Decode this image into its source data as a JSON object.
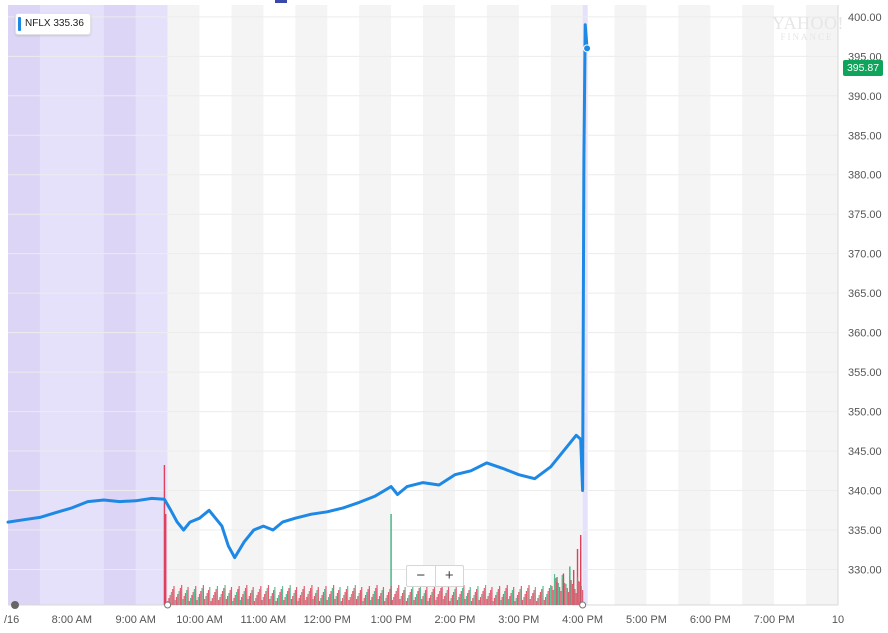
{
  "badge": {
    "symbol": "NFLX",
    "value": "335.36"
  },
  "last_price": "395.87",
  "watermark": {
    "line1": "YAHOO!",
    "line2": "FINANCE"
  },
  "zoom": {
    "minus": "−",
    "plus": "+"
  },
  "colors": {
    "line": "#1e88e5",
    "premarket_shade": "#e6e1fb",
    "premarket_band": "#dcd5f6",
    "band": "#f4f4f4",
    "vol_up": "#3fb27f",
    "vol_down": "#e0405a",
    "price_tag": "#0fa35b"
  },
  "chart_data": {
    "type": "line",
    "symbol": "NFLX",
    "y_ticks": [
      "400.00",
      "395.00",
      "390.00",
      "385.00",
      "380.00",
      "375.00",
      "370.00",
      "365.00",
      "360.00",
      "355.00",
      "350.00",
      "345.00",
      "340.00",
      "335.00",
      "330.00"
    ],
    "x_ticks": [
      "/16",
      "8:00 AM",
      "9:00 AM",
      "10:00 AM",
      "11:00 AM",
      "12:00 PM",
      "1:00 PM",
      "2:00 PM",
      "3:00 PM",
      "4:00 PM",
      "5:00 PM",
      "6:00 PM",
      "7:00 PM",
      "10"
    ],
    "ylim": [
      325.5,
      401.5
    ],
    "x_range_hours": [
      7.0,
      20.0
    ],
    "series": [
      {
        "points": [
          [
            7.0,
            336.0
          ],
          [
            7.25,
            336.3
          ],
          [
            7.5,
            336.6
          ],
          [
            7.75,
            337.2
          ],
          [
            8.0,
            337.8
          ],
          [
            8.25,
            338.6
          ],
          [
            8.5,
            338.8
          ],
          [
            8.75,
            338.6
          ],
          [
            9.0,
            338.7
          ],
          [
            9.25,
            339.0
          ],
          [
            9.45,
            338.9
          ],
          [
            9.55,
            337.5
          ],
          [
            9.65,
            336.0
          ],
          [
            9.75,
            335.0
          ],
          [
            9.85,
            336.0
          ],
          [
            10.0,
            336.5
          ],
          [
            10.15,
            337.5
          ],
          [
            10.25,
            336.5
          ],
          [
            10.35,
            335.5
          ],
          [
            10.45,
            333.0
          ],
          [
            10.55,
            331.5
          ],
          [
            10.7,
            333.5
          ],
          [
            10.85,
            335.0
          ],
          [
            11.0,
            335.5
          ],
          [
            11.15,
            335.0
          ],
          [
            11.3,
            336.0
          ],
          [
            11.5,
            336.5
          ],
          [
            11.75,
            337.0
          ],
          [
            12.0,
            337.3
          ],
          [
            12.25,
            337.8
          ],
          [
            12.5,
            338.5
          ],
          [
            12.75,
            339.3
          ],
          [
            13.0,
            340.5
          ],
          [
            13.1,
            339.5
          ],
          [
            13.25,
            340.5
          ],
          [
            13.5,
            341.0
          ],
          [
            13.75,
            340.7
          ],
          [
            14.0,
            342.0
          ],
          [
            14.25,
            342.5
          ],
          [
            14.5,
            343.5
          ],
          [
            14.75,
            342.8
          ],
          [
            15.0,
            342.0
          ],
          [
            15.25,
            341.5
          ],
          [
            15.5,
            343.0
          ],
          [
            15.75,
            345.5
          ],
          [
            15.9,
            347.0
          ],
          [
            15.97,
            346.5
          ],
          [
            16.0,
            340.0
          ],
          [
            16.02,
            382.0
          ],
          [
            16.04,
            399.0
          ],
          [
            16.07,
            396.0
          ]
        ]
      }
    ],
    "volume": [
      {
        "t": 9.45,
        "v": 2.0,
        "up": false
      },
      {
        "t": 9.47,
        "v": 1.3,
        "up": false
      },
      {
        "t": 13.0,
        "v": 1.3,
        "up": true
      },
      {
        "t": 15.86,
        "v": 0.5,
        "up": false
      },
      {
        "t": 15.92,
        "v": 0.8,
        "up": false
      },
      {
        "t": 15.97,
        "v": 1.0,
        "up": false
      },
      {
        "t": 15.8,
        "v": 0.55,
        "up": true
      },
      {
        "t": 15.7,
        "v": 0.45,
        "up": false
      },
      {
        "t": 15.6,
        "v": 0.4,
        "up": true
      }
    ]
  }
}
